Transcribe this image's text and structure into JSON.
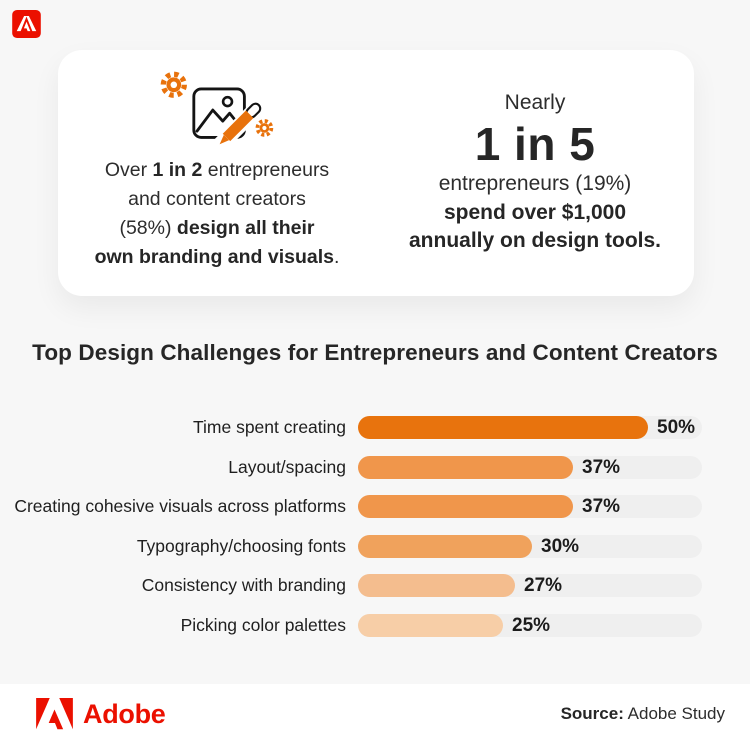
{
  "page": {
    "background": "#f7f7f7",
    "adobe_red": "#EB1000",
    "accent_orange": "#E8720C"
  },
  "card": {
    "left_stat": {
      "icon": "image-editing-with-gears-icon",
      "lines": [
        [
          {
            "t": "Over ",
            "b": false
          },
          {
            "t": "1 in 2",
            "b": true
          },
          {
            "t": " entrepreneurs",
            "b": false
          }
        ],
        [
          {
            "t": "and content creators",
            "b": false
          }
        ],
        [
          {
            "t": "(58%) ",
            "b": false
          },
          {
            "t": "design all their",
            "b": true
          }
        ],
        [
          {
            "t": "own branding and visuals",
            "b": true
          },
          {
            "t": ".",
            "b": false
          }
        ]
      ]
    },
    "right_stat": {
      "intro": "Nearly",
      "big": "1 in 5",
      "line1": "entrepreneurs (19%)",
      "line2": "spend over $1,000",
      "line3": "annually on design tools."
    }
  },
  "chart_data": {
    "type": "bar",
    "orientation": "horizontal",
    "title": "Top Design Challenges for Entrepreneurs and Content Creators",
    "categories": [
      "Time spent creating",
      "Layout/spacing",
      "Creating cohesive visuals across platforms",
      "Typography/choosing fonts",
      "Consistency with branding",
      "Picking color palettes"
    ],
    "values": [
      50,
      37,
      37,
      30,
      27,
      25
    ],
    "value_labels": [
      "50%",
      "37%",
      "37%",
      "30%",
      "27%",
      "25%"
    ],
    "value_suffix": "%",
    "bar_colors": [
      "#E8730D",
      "#F0964B",
      "#F0964B",
      "#F0A25C",
      "#F4BD8E",
      "#F7CEA7"
    ],
    "track_color": "#efefef",
    "xlim": [
      0,
      59.3
    ],
    "grid": false,
    "legend": false
  },
  "footer": {
    "brand": "Adobe",
    "source_label": "Source:",
    "source_value": " Adobe Study"
  }
}
